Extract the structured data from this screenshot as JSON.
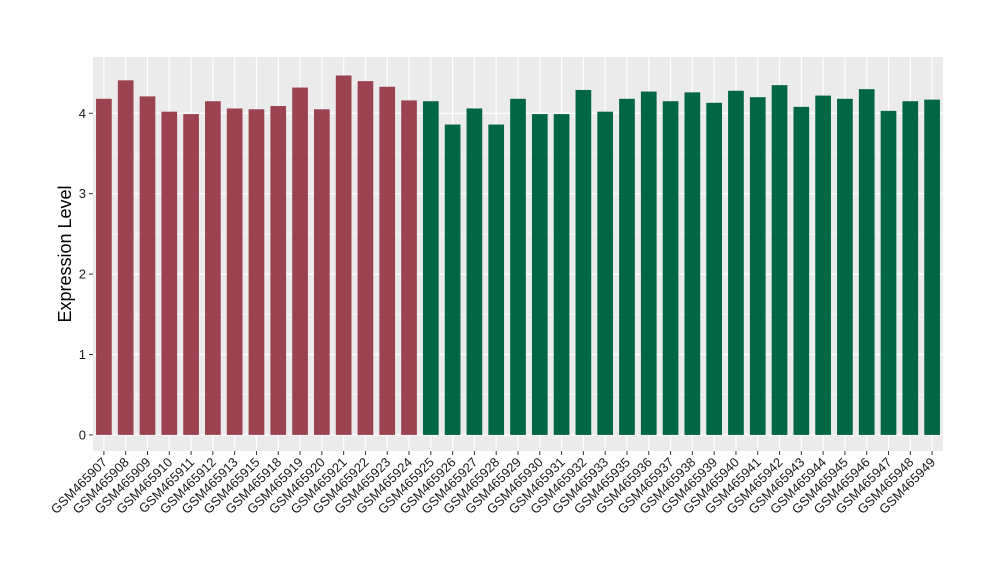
{
  "chart_data": {
    "type": "bar",
    "title": "",
    "xlabel": "",
    "ylabel": "Expression Level",
    "ylim": [
      -0.2,
      4.7
    ],
    "yticks": [
      0,
      1,
      2,
      3,
      4
    ],
    "grid": true,
    "categories": [
      "GSM465907",
      "GSM465908",
      "GSM465909",
      "GSM465910",
      "GSM465911",
      "GSM465912",
      "GSM465913",
      "GSM465915",
      "GSM465918",
      "GSM465919",
      "GSM465920",
      "GSM465921",
      "GSM465922",
      "GSM465923",
      "GSM465924",
      "GSM465925",
      "GSM465926",
      "GSM465927",
      "GSM465928",
      "GSM465929",
      "GSM465930",
      "GSM465931",
      "GSM465932",
      "GSM465933",
      "GSM465935",
      "GSM465936",
      "GSM465937",
      "GSM465938",
      "GSM465939",
      "GSM465940",
      "GSM465941",
      "GSM465942",
      "GSM465943",
      "GSM465944",
      "GSM465945",
      "GSM465946",
      "GSM465947",
      "GSM465948",
      "GSM465949"
    ],
    "values": [
      4.18,
      4.41,
      4.21,
      4.02,
      3.99,
      4.15,
      4.06,
      4.05,
      4.09,
      4.32,
      4.05,
      4.47,
      4.4,
      4.33,
      4.16,
      4.15,
      3.86,
      4.06,
      3.86,
      4.18,
      3.99,
      3.99,
      4.29,
      4.02,
      4.18,
      4.27,
      4.15,
      4.26,
      4.13,
      4.28,
      4.2,
      4.35,
      4.08,
      4.22,
      4.18,
      4.3,
      4.03,
      4.15,
      4.17
    ],
    "group_colors": [
      "#9b4350",
      "#006644"
    ],
    "group_split": 15,
    "panel_color": "#ebebeb",
    "grid_color": "#ffffff"
  }
}
